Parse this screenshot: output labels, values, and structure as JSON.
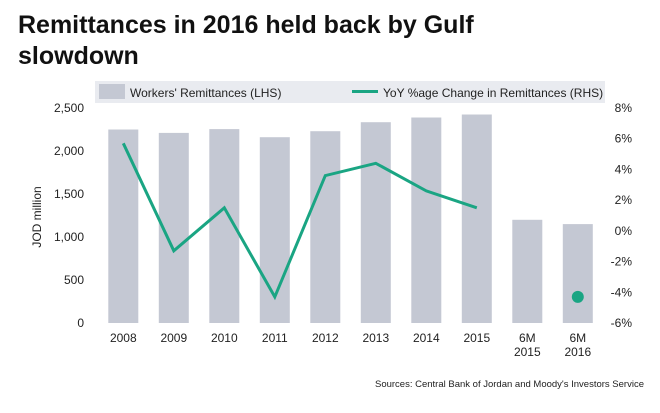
{
  "chart_data": {
    "type": "bar",
    "title": "Remittances in 2016 held back by Gulf slowdown",
    "categories": [
      [
        "2008"
      ],
      [
        "2009"
      ],
      [
        "2010"
      ],
      [
        "2011"
      ],
      [
        "2012"
      ],
      [
        "2013"
      ],
      [
        "2014"
      ],
      [
        "2015"
      ],
      [
        "6M",
        "2015"
      ],
      [
        "6M",
        "2016"
      ]
    ],
    "series": [
      {
        "name": "Workers' Remittances (LHS)",
        "type": "bar",
        "axis": "left",
        "color": "#c4c8d3",
        "values": [
          2250,
          2210,
          2255,
          2160,
          2230,
          2335,
          2390,
          2425,
          1200,
          1150
        ]
      },
      {
        "name": "YoY %age Change in Remittances (RHS)",
        "type": "line",
        "axis": "right",
        "color": "#1aa583",
        "values": [
          5.7,
          -1.3,
          1.5,
          -4.3,
          3.6,
          4.4,
          2.6,
          1.5,
          null,
          -4.3
        ],
        "marker_only_index": 9
      }
    ],
    "ylabel": "JOD million",
    "ylim_left": [
      0,
      2500
    ],
    "yticks_left": [
      "0",
      "500",
      "1,000",
      "1,500",
      "2,000",
      "2,500"
    ],
    "ylim_right": [
      -6,
      8
    ],
    "yticks_right": [
      "-6%",
      "-4%",
      "-2%",
      "0%",
      "2%",
      "4%",
      "6%",
      "8%"
    ],
    "legend_position": "top",
    "grid": false
  },
  "source": "Sources: Central Bank of Jordan and Moody's Investors Service"
}
